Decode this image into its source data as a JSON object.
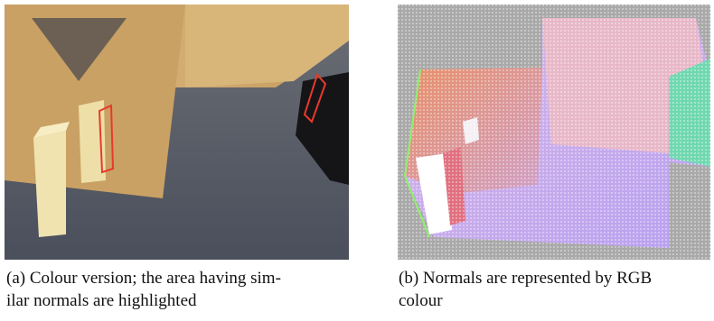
{
  "figures": [
    {
      "caption_lines": [
        "(a) Colour version; the area having sim-",
        "ilar normals are highlighted"
      ]
    },
    {
      "caption_lines": [
        "(b) Normals are represented by RGB",
        "colour"
      ]
    }
  ]
}
